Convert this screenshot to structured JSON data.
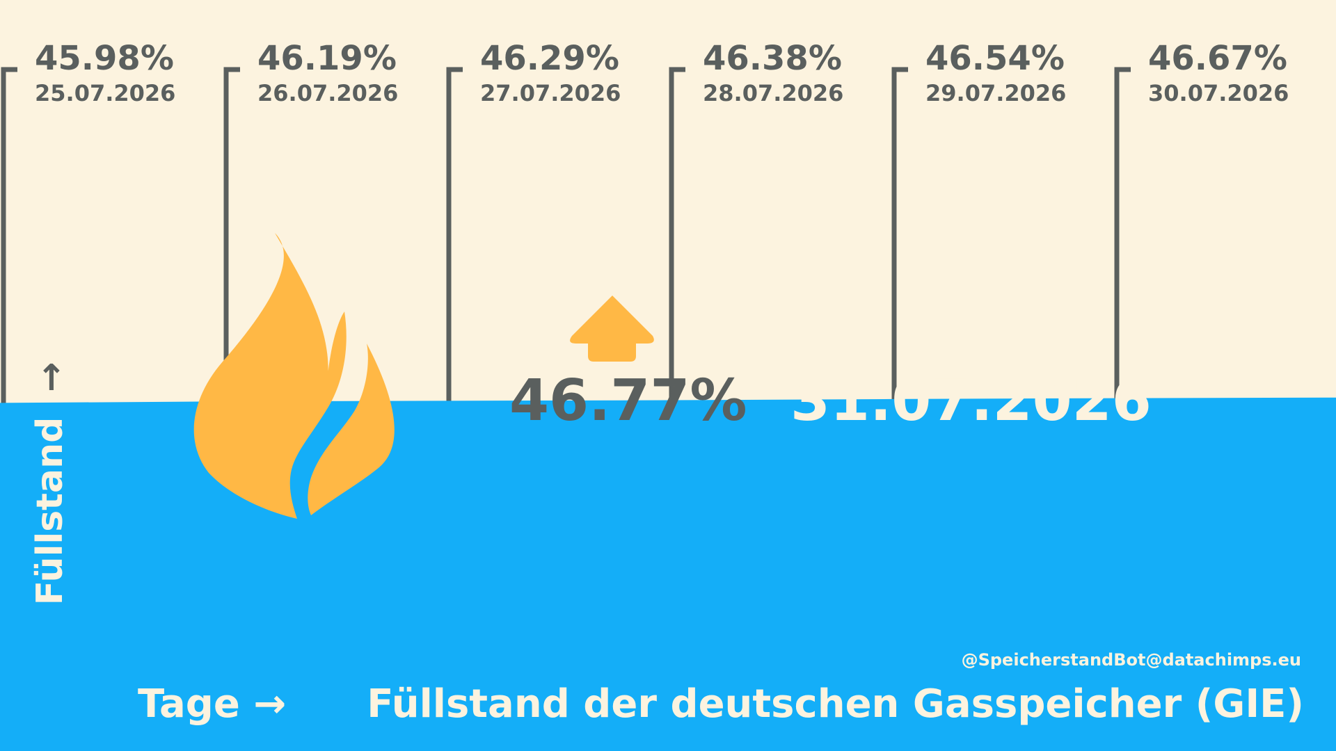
{
  "chart_data": {
    "type": "area",
    "x": [
      "25.07.2026",
      "26.07.2026",
      "27.07.2026",
      "28.07.2026",
      "29.07.2026",
      "30.07.2026",
      "31.07.2026"
    ],
    "values": [
      45.98,
      46.19,
      46.29,
      46.38,
      46.54,
      46.67,
      46.77
    ],
    "value_labels": [
      "45.98%",
      "46.19%",
      "46.29%",
      "46.38%",
      "46.54%",
      "46.67%",
      "46.77%"
    ],
    "ylim": [
      0,
      100
    ],
    "title": "Füllstand der deutschen Gasspeicher (GIE)",
    "xlabel": "Tage →",
    "ylabel": "Füllstand",
    "ylabel_arrow": "↑",
    "current": {
      "value_label": "46.77%",
      "date": "31.07.2026",
      "trend": "up"
    },
    "source": "@SpeicherstandBot@datachimps.eu",
    "icons": [
      "flame-icon",
      "arrow-up-icon"
    ]
  },
  "colors": {
    "background": "#fcf3df",
    "fill": "#14aef8",
    "lines": "#5a5f5e",
    "flame": "#ffb845",
    "text_light": "#fcf3df"
  }
}
